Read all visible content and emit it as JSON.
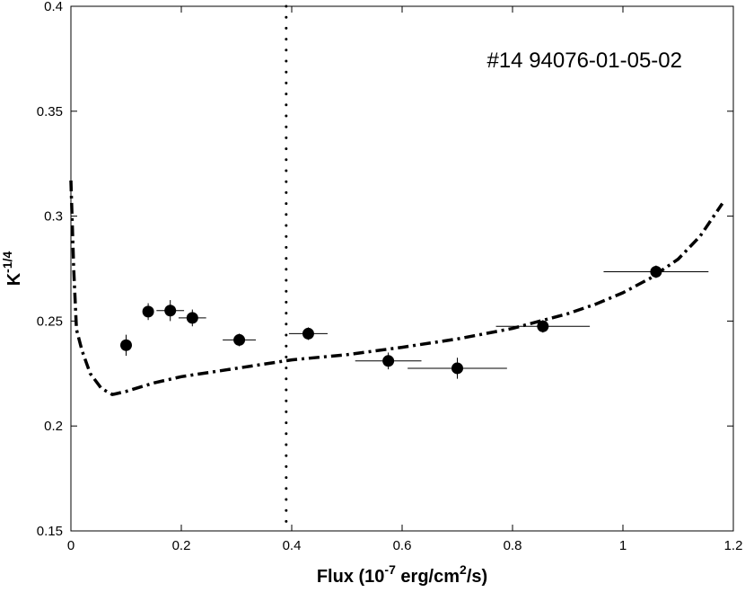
{
  "chart_data": {
    "type": "scatter",
    "title": "",
    "annotation": "#14 94076-01-05-02",
    "xlabel": {
      "main": "Flux (10",
      "sup": "-7",
      "mid": " erg/cm",
      "sup2": "2",
      "end": "/s)"
    },
    "ylabel": {
      "main": "K",
      "sup": "-1/4"
    },
    "xlim": [
      0,
      1.2
    ],
    "ylim": [
      0.15,
      0.4
    ],
    "xticks": [
      0,
      0.2,
      0.4,
      0.6,
      0.8,
      1,
      1.2
    ],
    "xtick_labels": [
      "0",
      "0.2",
      "0.4",
      "0.6",
      "0.8",
      "1",
      "1.2"
    ],
    "yticks": [
      0.15,
      0.2,
      0.25,
      0.3,
      0.35,
      0.4
    ],
    "ytick_labels": [
      "0.15",
      "0.2",
      "0.25",
      "0.3",
      "0.35",
      "0.4"
    ],
    "grid": false,
    "vertical_line": {
      "x": 0.39,
      "style": "dotted"
    },
    "series": [
      {
        "kind": "points_with_errorbars",
        "points": [
          {
            "x": 0.1,
            "y": 0.2385,
            "xerr": 0.0,
            "yerr": 0.005
          },
          {
            "x": 0.14,
            "y": 0.2545,
            "xerr": 0.0,
            "yerr": 0.004
          },
          {
            "x": 0.18,
            "y": 0.255,
            "xerr": 0.025,
            "yerr": 0.005
          },
          {
            "x": 0.22,
            "y": 0.2515,
            "xerr": 0.025,
            "yerr": 0.004
          },
          {
            "x": 0.305,
            "y": 0.241,
            "xerr": 0.03,
            "yerr": 0.003
          },
          {
            "x": 0.43,
            "y": 0.244,
            "xerr": 0.035,
            "yerr": 0.003
          },
          {
            "x": 0.575,
            "y": 0.231,
            "xerr": 0.06,
            "yerr": 0.004
          },
          {
            "x": 0.7,
            "y": 0.2275,
            "xerr": 0.09,
            "yerr": 0.005
          },
          {
            "x": 0.855,
            "y": 0.2475,
            "xerr": 0.085,
            "yerr": 0.003
          },
          {
            "x": 1.06,
            "y": 0.2735,
            "xerr": 0.095,
            "yerr": 0.003
          }
        ]
      },
      {
        "kind": "curve",
        "style": "dash-dot",
        "x": [
          0.0,
          0.005,
          0.01,
          0.02,
          0.035,
          0.055,
          0.075,
          0.1,
          0.15,
          0.2,
          0.3,
          0.4,
          0.5,
          0.6,
          0.7,
          0.8,
          0.9,
          0.95,
          1.0,
          1.05,
          1.1,
          1.14,
          1.18
        ],
        "y": [
          0.317,
          0.275,
          0.246,
          0.236,
          0.225,
          0.218,
          0.215,
          0.2165,
          0.2205,
          0.2235,
          0.2275,
          0.2315,
          0.234,
          0.2375,
          0.2415,
          0.2465,
          0.2535,
          0.258,
          0.2635,
          0.2705,
          0.2795,
          0.2905,
          0.306
        ]
      }
    ]
  }
}
